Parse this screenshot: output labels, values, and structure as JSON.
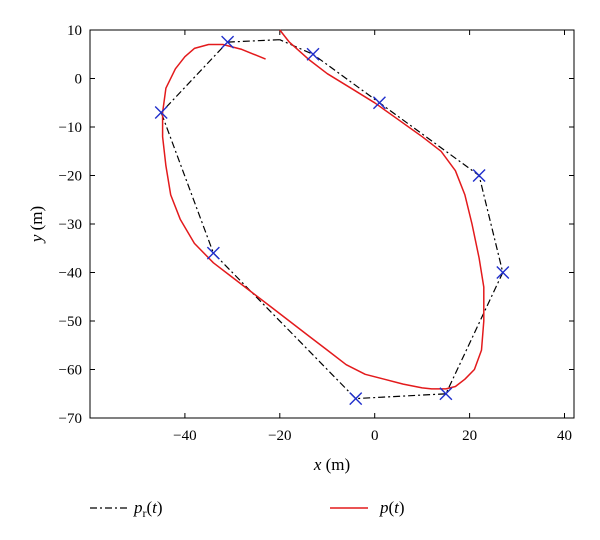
{
  "chart_data": {
    "type": "line",
    "xlabel": "x (m)",
    "ylabel": "y (m)",
    "xlim": [
      -60,
      42
    ],
    "ylim": [
      -70,
      10
    ],
    "xticks": [
      -40,
      -20,
      0,
      20,
      40
    ],
    "yticks": [
      10,
      0,
      -10,
      -20,
      -30,
      -40,
      -50,
      -60,
      -70
    ],
    "grid": false,
    "legend_position": "bottom",
    "series": [
      {
        "name": "p_r(t)",
        "style": "dash-dot",
        "color": "#000000",
        "x": [
          -20,
          -31,
          -45,
          -34,
          -4,
          15,
          27,
          22,
          1,
          -13,
          -20
        ],
        "y": [
          8,
          7.5,
          -7,
          -36,
          -66,
          -65,
          -40,
          -20,
          -5,
          5,
          8
        ]
      },
      {
        "name": "p(t)",
        "style": "solid",
        "color": "#e31a1c",
        "x": [
          -20,
          -18,
          -14,
          -10,
          -5,
          0,
          5,
          10,
          14,
          17,
          19,
          20.5,
          22,
          23,
          23,
          22.5,
          21,
          19,
          17,
          15,
          12,
          10,
          6,
          2,
          -2,
          -6,
          -10,
          -14,
          -18,
          -22,
          -26,
          -30,
          -34,
          -38,
          -41,
          -43,
          -44,
          -44.7,
          -44.7,
          -44,
          -42,
          -40,
          -38,
          -35,
          -32,
          -28,
          -23
        ],
        "y": [
          10,
          7.5,
          4,
          1,
          -2,
          -5,
          -8.5,
          -12,
          -15,
          -19,
          -24,
          -30,
          -37,
          -43,
          -50,
          -56,
          -60,
          -62,
          -63.5,
          -64,
          -64,
          -63.8,
          -63,
          -62,
          -61,
          -59,
          -56,
          -53,
          -50,
          -47,
          -44,
          -41,
          -38,
          -34,
          -29,
          -24,
          -18,
          -12,
          -7,
          -2,
          2,
          4.5,
          6.2,
          7,
          7,
          6,
          4
        ]
      }
    ],
    "markers": {
      "symbol": "x",
      "color": "#1f2ecc",
      "x": [
        -31,
        -13,
        1,
        22,
        27,
        15,
        -4,
        -34,
        -45
      ],
      "y": [
        7.5,
        5,
        -5,
        -20,
        -40,
        -65,
        -66,
        -36,
        -7
      ]
    },
    "legend": [
      {
        "label": "p_r(t)",
        "style": "dash-dot",
        "color": "#000000"
      },
      {
        "label": "p(t)",
        "style": "solid",
        "color": "#e31a1c"
      }
    ]
  }
}
